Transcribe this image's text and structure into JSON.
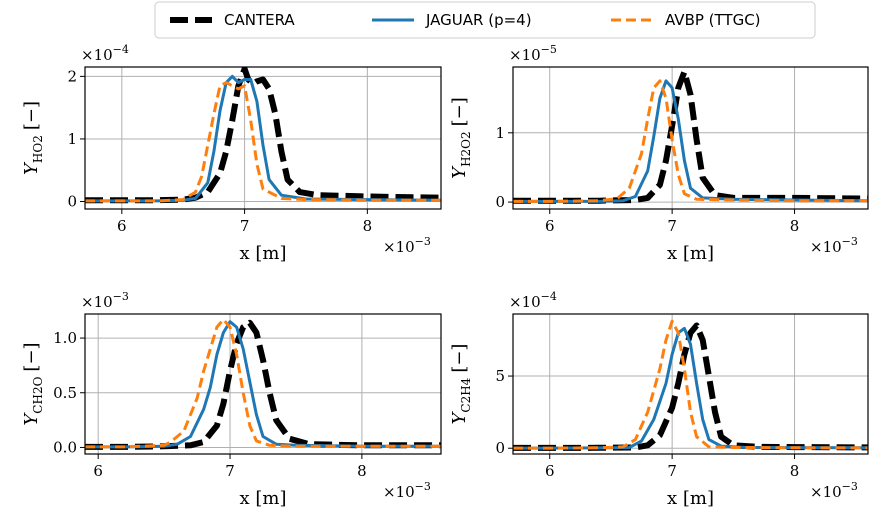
{
  "legend": {
    "placement": "top-center",
    "entries": [
      {
        "label": "CANTERA",
        "color": "#000000",
        "style": "dashed-thick"
      },
      {
        "label": "JAGUAR (p=4)",
        "color": "#1f77b4",
        "style": "solid"
      },
      {
        "label": "AVBP (TTGC)",
        "color": "#ff7f0e",
        "style": "dashed"
      }
    ]
  },
  "chart_data": [
    {
      "type": "line",
      "ylabel_text": "Y",
      "ylabel_subscript": "HO2",
      "ylabel_units": "[−]",
      "y_exponent_base": "×10",
      "y_exponent_power": "−4",
      "xlabel": "x [m]",
      "x_exponent_base": "×10",
      "x_exponent_power": "−3",
      "xlim": [
        5.7,
        8.6
      ],
      "ylim": [
        -0.12,
        2.15
      ],
      "xticks": [
        6,
        7,
        8
      ],
      "yticks": [
        0,
        1,
        2
      ],
      "ytick_labels": [
        "0",
        "1",
        "2"
      ],
      "grid": true,
      "series": [
        {
          "name": "CANTERA",
          "x": [
            5.7,
            6.0,
            6.3,
            6.5,
            6.6,
            6.7,
            6.8,
            6.85,
            6.9,
            6.95,
            7.0,
            7.03,
            7.07,
            7.1,
            7.15,
            7.2,
            7.25,
            7.3,
            7.35,
            7.45,
            7.6,
            8.0,
            8.6
          ],
          "y": [
            0.02,
            0.02,
            0.02,
            0.03,
            0.06,
            0.15,
            0.45,
            0.8,
            1.3,
            1.85,
            2.12,
            1.95,
            1.88,
            1.92,
            1.95,
            1.8,
            1.4,
            0.8,
            0.35,
            0.15,
            0.1,
            0.08,
            0.06
          ]
        },
        {
          "name": "JAGUAR (p=4)",
          "x": [
            5.7,
            6.0,
            6.3,
            6.5,
            6.6,
            6.7,
            6.75,
            6.8,
            6.85,
            6.9,
            6.95,
            7.0,
            7.05,
            7.1,
            7.15,
            7.2,
            7.3,
            7.5,
            8.0,
            8.6
          ],
          "y": [
            0.01,
            0.01,
            0.01,
            0.02,
            0.05,
            0.3,
            0.8,
            1.45,
            1.9,
            2.0,
            1.9,
            1.95,
            1.95,
            1.6,
            0.9,
            0.35,
            0.1,
            0.04,
            0.03,
            0.02
          ]
        },
        {
          "name": "AVBP (TTGC)",
          "x": [
            5.7,
            6.0,
            6.3,
            6.5,
            6.6,
            6.65,
            6.7,
            6.75,
            6.8,
            6.85,
            6.9,
            6.95,
            7.0,
            7.05,
            7.1,
            7.15,
            7.3,
            7.5,
            8.0,
            8.6
          ],
          "y": [
            0.01,
            0.01,
            0.01,
            0.03,
            0.15,
            0.4,
            0.9,
            1.4,
            1.85,
            1.9,
            1.85,
            1.8,
            1.85,
            1.3,
            0.6,
            0.2,
            0.05,
            0.03,
            0.02,
            0.02
          ]
        }
      ]
    },
    {
      "type": "line",
      "ylabel_text": "Y",
      "ylabel_subscript": "H2O2",
      "ylabel_units": "[−]",
      "y_exponent_base": "×10",
      "y_exponent_power": "−5",
      "xlabel": "x [m]",
      "x_exponent_base": "×10",
      "x_exponent_power": "−3",
      "xlim": [
        5.7,
        8.6
      ],
      "ylim": [
        -0.1,
        1.95
      ],
      "xticks": [
        6,
        7,
        8
      ],
      "yticks": [
        0,
        1
      ],
      "ytick_labels": [
        "0",
        "1"
      ],
      "grid": true,
      "series": [
        {
          "name": "CANTERA",
          "x": [
            5.7,
            6.0,
            6.4,
            6.7,
            6.8,
            6.9,
            6.95,
            7.0,
            7.05,
            7.1,
            7.15,
            7.2,
            7.25,
            7.35,
            7.5,
            8.0,
            8.6
          ],
          "y": [
            0.02,
            0.02,
            0.02,
            0.03,
            0.06,
            0.25,
            0.6,
            1.1,
            1.65,
            1.88,
            1.55,
            0.9,
            0.35,
            0.1,
            0.06,
            0.06,
            0.05
          ]
        },
        {
          "name": "JAGUAR (p=4)",
          "x": [
            5.7,
            6.0,
            6.4,
            6.6,
            6.7,
            6.8,
            6.85,
            6.9,
            6.95,
            7.0,
            7.05,
            7.1,
            7.15,
            7.25,
            7.5,
            8.0,
            8.6
          ],
          "y": [
            0.01,
            0.01,
            0.01,
            0.02,
            0.08,
            0.45,
            0.95,
            1.5,
            1.75,
            1.65,
            1.2,
            0.6,
            0.2,
            0.06,
            0.04,
            0.03,
            0.02
          ]
        },
        {
          "name": "AVBP (TTGC)",
          "x": [
            5.7,
            6.0,
            6.4,
            6.55,
            6.65,
            6.75,
            6.8,
            6.85,
            6.9,
            6.95,
            7.0,
            7.05,
            7.1,
            7.2,
            7.5,
            8.0,
            8.6
          ],
          "y": [
            0.01,
            0.01,
            0.02,
            0.05,
            0.2,
            0.7,
            1.2,
            1.65,
            1.75,
            1.5,
            0.9,
            0.4,
            0.12,
            0.04,
            0.03,
            0.02,
            0.02
          ]
        }
      ]
    },
    {
      "type": "line",
      "ylabel_text": "Y",
      "ylabel_subscript": "CH2O",
      "ylabel_units": "[−]",
      "y_exponent_base": "×10",
      "y_exponent_power": "−3",
      "xlabel": "x [m]",
      "x_exponent_base": "×10",
      "x_exponent_power": "−3",
      "xlim": [
        5.9,
        8.6
      ],
      "ylim": [
        -0.06,
        1.22
      ],
      "xticks": [
        6,
        7,
        8
      ],
      "yticks": [
        0,
        0.5,
        1
      ],
      "ytick_labels": [
        "0.0",
        "0.5",
        "1.0"
      ],
      "grid": true,
      "series": [
        {
          "name": "CANTERA",
          "x": [
            5.9,
            6.2,
            6.5,
            6.7,
            6.8,
            6.9,
            6.95,
            7.0,
            7.05,
            7.1,
            7.15,
            7.2,
            7.25,
            7.3,
            7.35,
            7.45,
            7.6,
            8.0,
            8.6
          ],
          "y": [
            0.005,
            0.005,
            0.01,
            0.02,
            0.05,
            0.2,
            0.4,
            0.7,
            0.95,
            1.1,
            1.14,
            1.05,
            0.8,
            0.5,
            0.25,
            0.08,
            0.03,
            0.02,
            0.02
          ]
        },
        {
          "name": "JAGUAR (p=4)",
          "x": [
            5.9,
            6.2,
            6.5,
            6.6,
            6.7,
            6.8,
            6.85,
            6.9,
            6.95,
            7.0,
            7.05,
            7.1,
            7.15,
            7.2,
            7.25,
            7.35,
            7.5,
            8.0,
            8.6
          ],
          "y": [
            0.005,
            0.005,
            0.01,
            0.03,
            0.1,
            0.35,
            0.55,
            0.85,
            1.05,
            1.15,
            1.1,
            0.9,
            0.6,
            0.3,
            0.1,
            0.03,
            0.02,
            0.01,
            0.01
          ]
        },
        {
          "name": "AVBP (TTGC)",
          "x": [
            5.9,
            6.2,
            6.5,
            6.55,
            6.65,
            6.75,
            6.8,
            6.85,
            6.9,
            6.95,
            7.0,
            7.05,
            7.1,
            7.15,
            7.2,
            7.3,
            7.5,
            8.0,
            8.6
          ],
          "y": [
            0.005,
            0.005,
            0.02,
            0.05,
            0.15,
            0.45,
            0.7,
            0.9,
            1.1,
            1.17,
            1.1,
            0.85,
            0.5,
            0.2,
            0.06,
            0.02,
            0.01,
            0.01,
            0.01
          ]
        }
      ]
    },
    {
      "type": "line",
      "ylabel_text": "Y",
      "ylabel_subscript": "C2H4",
      "ylabel_units": "[−]",
      "y_exponent_base": "×10",
      "y_exponent_power": "−4",
      "xlabel": "x [m]",
      "x_exponent_base": "×10",
      "x_exponent_power": "−3",
      "xlim": [
        5.7,
        8.6
      ],
      "ylim": [
        -0.4,
        9.3
      ],
      "xticks": [
        6,
        7,
        8
      ],
      "yticks": [
        0,
        5
      ],
      "ytick_labels": [
        "0",
        "5"
      ],
      "grid": true,
      "series": [
        {
          "name": "CANTERA",
          "x": [
            5.7,
            6.0,
            6.4,
            6.7,
            6.8,
            6.9,
            7.0,
            7.05,
            7.1,
            7.15,
            7.2,
            7.25,
            7.3,
            7.35,
            7.4,
            7.5,
            7.7,
            8.0,
            8.6
          ],
          "y": [
            0.02,
            0.02,
            0.03,
            0.05,
            0.2,
            0.9,
            2.8,
            4.5,
            6.5,
            8.0,
            8.5,
            7.5,
            5.0,
            2.5,
            0.8,
            0.2,
            0.1,
            0.08,
            0.06
          ]
        },
        {
          "name": "JAGUAR (p=4)",
          "x": [
            5.7,
            6.0,
            6.4,
            6.65,
            6.75,
            6.85,
            6.95,
            7.0,
            7.05,
            7.1,
            7.15,
            7.2,
            7.25,
            7.3,
            7.4,
            7.6,
            8.0,
            8.6
          ],
          "y": [
            0.01,
            0.01,
            0.02,
            0.05,
            0.5,
            2.0,
            4.5,
            6.5,
            8.0,
            8.3,
            7.2,
            4.5,
            2.0,
            0.6,
            0.15,
            0.05,
            0.04,
            0.03
          ]
        },
        {
          "name": "AVBP (TTGC)",
          "x": [
            5.7,
            6.0,
            6.4,
            6.6,
            6.7,
            6.8,
            6.9,
            6.95,
            7.0,
            7.05,
            7.1,
            7.15,
            7.2,
            7.3,
            7.5,
            8.0,
            8.6
          ],
          "y": [
            0.01,
            0.01,
            0.03,
            0.1,
            0.6,
            2.5,
            5.5,
            7.5,
            8.8,
            8.0,
            5.5,
            2.5,
            0.8,
            0.1,
            0.05,
            0.03,
            0.02
          ]
        }
      ]
    }
  ]
}
